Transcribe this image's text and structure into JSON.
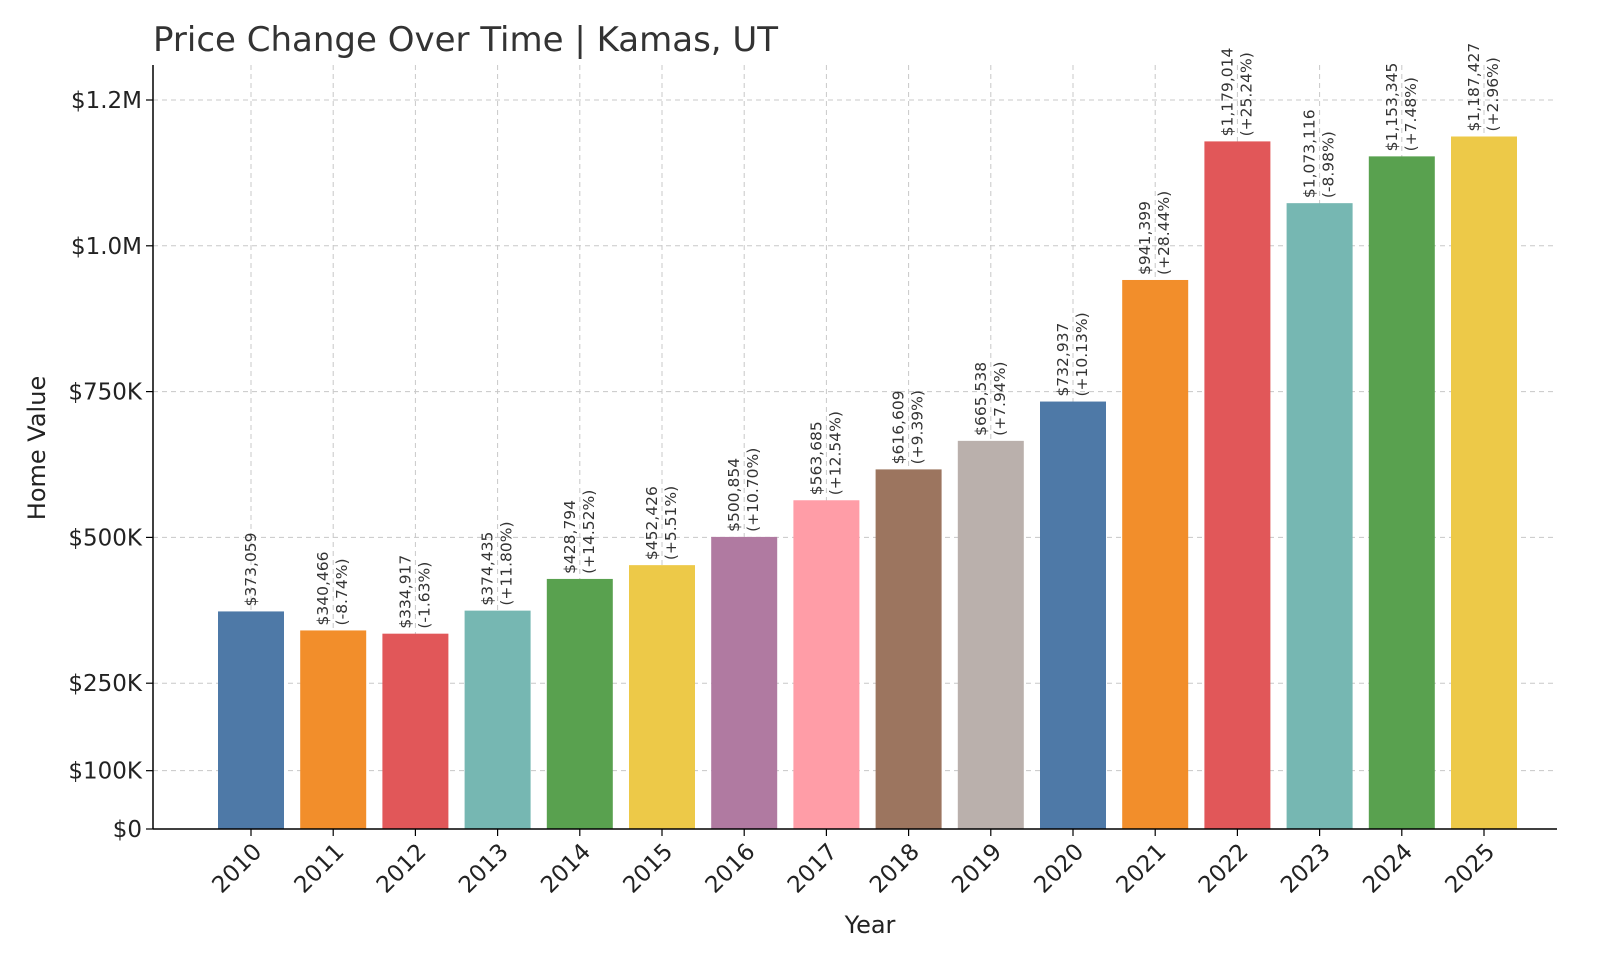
{
  "chart_data": {
    "type": "bar",
    "title": "Price Change Over Time | Kamas, UT",
    "xlabel": "Year",
    "ylabel": "Home Value",
    "ylim": [
      0,
      1250000
    ],
    "grid": true,
    "yticks": [
      {
        "value": 0,
        "label": "$0"
      },
      {
        "value": 100000,
        "label": "$100K"
      },
      {
        "value": 250000,
        "label": "$250K"
      },
      {
        "value": 500000,
        "label": "$500K"
      },
      {
        "value": 750000,
        "label": "$750K"
      },
      {
        "value": 1000000,
        "label": "$1.0M"
      },
      {
        "value": 1250000,
        "label": "$1.2M"
      }
    ],
    "categories": [
      "2010",
      "2011",
      "2012",
      "2013",
      "2014",
      "2015",
      "2016",
      "2017",
      "2018",
      "2019",
      "2020",
      "2021",
      "2022",
      "2023",
      "2024",
      "2025"
    ],
    "values": [
      373059,
      340466,
      334917,
      374435,
      428794,
      452426,
      500854,
      563685,
      616609,
      665538,
      732937,
      941399,
      1179014,
      1073116,
      1153345,
      1187427
    ],
    "value_labels": [
      "$373,059",
      "$340,466",
      "$334,917",
      "$374,435",
      "$428,794",
      "$452,426",
      "$500,854",
      "$563,685",
      "$616,609",
      "$665,538",
      "$732,937",
      "$941,399",
      "$1,179,014",
      "$1,073,116",
      "$1,153,345",
      "$1,187,427"
    ],
    "change_labels": [
      "",
      "(-8.74%)",
      "(-1.63%)",
      "(+11.80%)",
      "(+14.52%)",
      "(+5.51%)",
      "(+10.70%)",
      "(+12.54%)",
      "(+9.39%)",
      "(+7.94%)",
      "(+10.13%)",
      "(+28.44%)",
      "(+25.24%)",
      "(-8.98%)",
      "(+7.48%)",
      "(+2.96%)"
    ],
    "colors": [
      "#4e79a7",
      "#f28e2b",
      "#e15759",
      "#76b7b2",
      "#59a14f",
      "#edc948",
      "#b07aa1",
      "#ff9da7",
      "#9c755f",
      "#bab0ac",
      "#4e79a7",
      "#f28e2b",
      "#e15759",
      "#76b7b2",
      "#59a14f",
      "#edc948"
    ]
  }
}
